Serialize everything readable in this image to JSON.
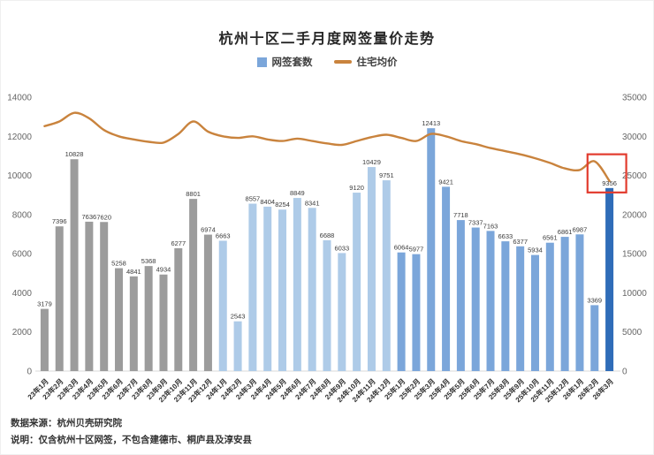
{
  "chart": {
    "title": "杭州十区二手月度网签量价走势",
    "legend": [
      {
        "label": "网签套数",
        "type": "bar",
        "color": "#7ba6da"
      },
      {
        "label": "住宅均价",
        "type": "line",
        "color": "#c9833d"
      }
    ],
    "footer": {
      "source": "数据来源：杭州贝壳研究院",
      "note": "说明：仅含杭州十区网签，不包含建德市、桐庐县及淳安县"
    }
  },
  "chart_data": {
    "type": "bar",
    "title": "杭州十区二手月度网签量价走势",
    "legend_position": "top",
    "grid": false,
    "categories": [
      "23年1月",
      "23年2月",
      "23年3月",
      "23年4月",
      "23年5月",
      "23年6月",
      "23年7月",
      "23年8月",
      "23年9月",
      "23年10月",
      "23年11月",
      "23年12月",
      "24年1月",
      "24年2月",
      "24年3月",
      "24年4月",
      "24年5月",
      "24年6月",
      "24年7月",
      "24年8月",
      "24年9月",
      "24年10月",
      "24年11月",
      "24年12月",
      "25年1月",
      "25年2月",
      "25年3月",
      "25年4月",
      "25年5月",
      "25年6月",
      "25年7月",
      "25年8月",
      "25年9月",
      "25年10月",
      "25年11月",
      "25年12月",
      "26年1月",
      "26年2月",
      "26年3月"
    ],
    "series": [
      {
        "name": "网签套数",
        "type": "bar",
        "y_axis": "left",
        "values": [
          3179,
          7396,
          10828,
          7636,
          7620,
          5258,
          4841,
          5368,
          4934,
          6277,
          8801,
          6974,
          6663,
          2543,
          8557,
          8404,
          8254,
          8849,
          8341,
          6688,
          6033,
          9120,
          10429,
          9751,
          6064,
          5977,
          12413,
          9421,
          7718,
          7337,
          7163,
          6633,
          6377,
          5934,
          6561,
          6861,
          6987,
          3369,
          9356
        ]
      },
      {
        "name": "住宅均价",
        "type": "line",
        "y_axis": "right",
        "values": [
          31300,
          31900,
          33000,
          32300,
          30800,
          30000,
          29600,
          29300,
          29200,
          30300,
          31900,
          30600,
          30000,
          29800,
          30000,
          29600,
          29400,
          29700,
          29400,
          29100,
          28900,
          29400,
          29900,
          30200,
          29800,
          29400,
          30300,
          30000,
          29400,
          29000,
          28500,
          28100,
          27700,
          27200,
          26600,
          25900,
          25700,
          26800,
          24300
        ]
      }
    ],
    "left_axis": {
      "range": [
        0,
        14000
      ],
      "ticks": [
        0,
        2000,
        4000,
        6000,
        8000,
        10000,
        12000,
        14000
      ]
    },
    "right_axis": {
      "range": [
        0,
        35000
      ],
      "ticks": [
        0,
        5000,
        10000,
        15000,
        20000,
        25000,
        30000,
        35000
      ]
    },
    "bar_colors_by_year": {
      "23": "#9c9c9c",
      "24": "#aecbe8",
      "25": "#7ba6da",
      "26": "#7ba6da"
    },
    "highlight": {
      "index": 38,
      "bar_color": "#2f6cb8",
      "box_color": "#e23b2e"
    },
    "line_color": "#c9833d"
  }
}
